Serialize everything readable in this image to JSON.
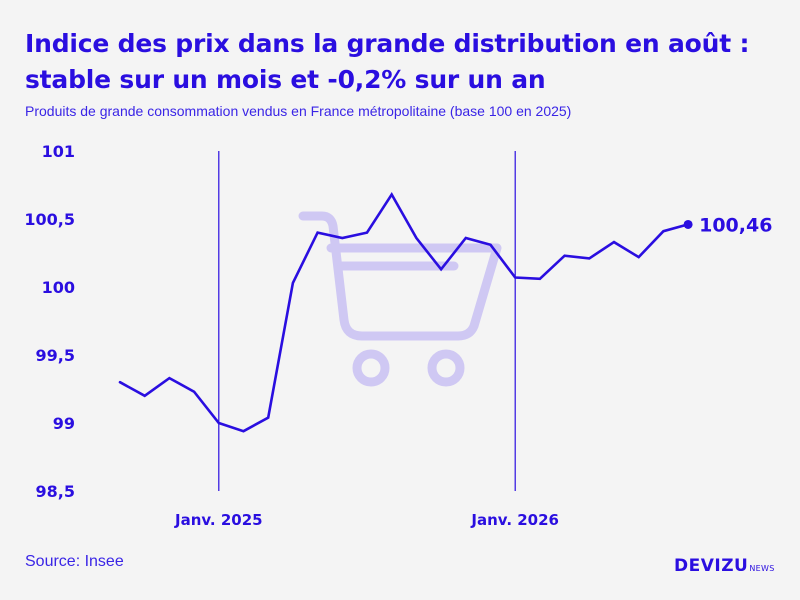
{
  "header": {
    "title_line1": "Indice des prix dans la grande distribution en août :",
    "title_line2": "stable sur un mois et -0,2% sur un an",
    "subtitle": "Produits de grande consommation vendus en France métropolitaine (base 100 en 2025)"
  },
  "footer": {
    "source": "Source: Insee",
    "logo_main": "DEVIZU",
    "logo_sub": "NEWS"
  },
  "colors": {
    "accent": "#2a0ee0",
    "line": "#2a0ee0",
    "watermark": "#cfc8f3",
    "background": "#f4f4f4"
  },
  "watermark_icon": "shopping-cart-icon",
  "chart_data": {
    "type": "line",
    "title": "Indice des prix dans la grande distribution en août : stable sur un mois et -0,2% sur un an",
    "subtitle": "Produits de grande consommation vendus en France métropolitaine (base 100 en 2025)",
    "x": [
      "2024-09",
      "2024-10",
      "2024-11",
      "2024-12",
      "2025-01",
      "2025-02",
      "2025-03",
      "2025-04",
      "2025-05",
      "2025-06",
      "2025-07",
      "2025-08",
      "2025-09",
      "2025-10",
      "2025-11",
      "2025-12",
      "2026-01",
      "2026-02",
      "2026-03",
      "2026-04",
      "2026-05",
      "2026-06",
      "2026-07",
      "2026-08"
    ],
    "series": [
      {
        "values": [
          99.3,
          99.2,
          99.33,
          99.23,
          99.0,
          98.94,
          99.04,
          100.03,
          100.4,
          100.36,
          100.4,
          100.68,
          100.36,
          100.13,
          100.36,
          100.31,
          100.07,
          100.06,
          100.23,
          100.21,
          100.33,
          100.22,
          100.41,
          100.46
        ]
      }
    ],
    "ylim": [
      98.5,
      101
    ],
    "yticks": [
      "101",
      "100,5",
      "100",
      "99,5",
      "99",
      "98,5"
    ],
    "ytick_values": [
      101,
      100.5,
      100,
      99.5,
      99,
      98.5
    ],
    "xticks": [
      {
        "label": "Janv. 2025",
        "x": "2025-01"
      },
      {
        "label": "Janv. 2026",
        "x": "2026-01"
      }
    ],
    "end_label": "100,46",
    "grid": false,
    "xlabel": "",
    "ylabel": ""
  }
}
